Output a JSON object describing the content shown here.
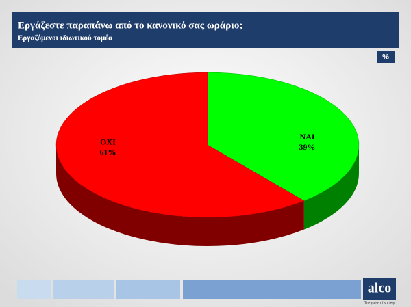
{
  "chart_data": {
    "type": "pie",
    "title": "Εργάζεστε παραπάνω από το κανονικό σας ωράριο;",
    "subtitle": "Εργαζόμενοι ιδιωτικού τομέα",
    "unit": "%",
    "categories": [
      "ΝΑΙ",
      "ΟΧΙ"
    ],
    "values": [
      39,
      61
    ],
    "value_labels": [
      "39%",
      "61%"
    ],
    "colors": [
      "#00ff00",
      "#ff0000"
    ]
  },
  "footer": {
    "logo": "alco",
    "tagline": "The pulse of society"
  }
}
